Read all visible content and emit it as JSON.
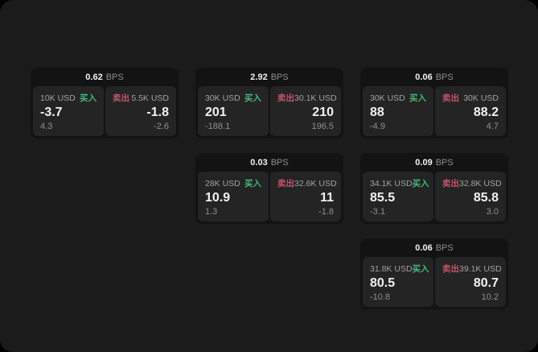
{
  "labels": {
    "bps_unit": "BPS",
    "buy": "买入",
    "sell": "卖出"
  },
  "colors": {
    "window-bg": "#1b1b1b",
    "card-bg": "#131313",
    "panel-bg": "#242424",
    "buy-green": "#46b877",
    "sell-red": "#c25568",
    "text-bright": "#f2f2f2",
    "text-mid": "#a2a2a2",
    "text-dim": "#8f8f8f"
  },
  "cards": [
    {
      "bps": "0.62",
      "buy": {
        "amount": "10K USD",
        "price": "-3.7",
        "delta": "4.3"
      },
      "sell": {
        "amount": "5.5K USD",
        "price": "-1.8",
        "delta": "-2.6"
      }
    },
    {
      "bps": "2.92",
      "buy": {
        "amount": "30K USD",
        "price": "201",
        "delta": "-188.1"
      },
      "sell": {
        "amount": "30.1K USD",
        "price": "210",
        "delta": "196.5"
      }
    },
    {
      "bps": "0.06",
      "buy": {
        "amount": "30K USD",
        "price": "88",
        "delta": "-4.9"
      },
      "sell": {
        "amount": "30K USD",
        "price": "88.2",
        "delta": "4.7"
      }
    },
    {
      "bps": "0.03",
      "buy": {
        "amount": "28K USD",
        "price": "10.9",
        "delta": "1.3"
      },
      "sell": {
        "amount": "32.6K USD",
        "price": "11",
        "delta": "-1.8"
      }
    },
    {
      "bps": "0.09",
      "buy": {
        "amount": "34.1K USD",
        "price": "85.5",
        "delta": "-3.1"
      },
      "sell": {
        "amount": "32.8K USD",
        "price": "85.8",
        "delta": "3.0"
      }
    },
    {
      "bps": "0.06",
      "buy": {
        "amount": "31.8K USD",
        "price": "80.5",
        "delta": "-10.8"
      },
      "sell": {
        "amount": "39.1K USD",
        "price": "80.7",
        "delta": "10.2"
      }
    }
  ]
}
